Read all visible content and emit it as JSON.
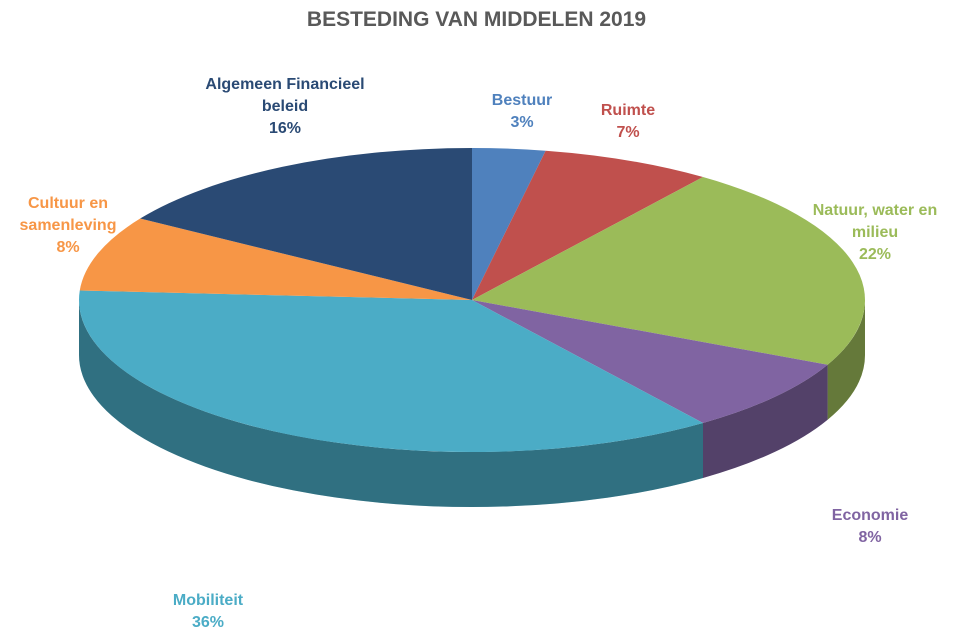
{
  "chart_data": {
    "type": "pie3d",
    "title": "BESTEDING VAN MIDDELEN 2019",
    "categories": [
      "Bestuur",
      "Ruimte",
      "Natuur, water en milieu",
      "Economie",
      "Mobiliteit",
      "Cultuur en samenleving",
      "Algemeen Financieel beleid"
    ],
    "values": [
      3,
      7,
      22,
      8,
      36,
      8,
      16
    ],
    "value_labels": [
      "3%",
      "7%",
      "22%",
      "8%",
      "36%",
      "8%",
      "16%"
    ],
    "colors": [
      "#4f81bd",
      "#c0504d",
      "#9bbb59",
      "#8064a2",
      "#4bacc6",
      "#f79646",
      "#2a4a74"
    ]
  }
}
